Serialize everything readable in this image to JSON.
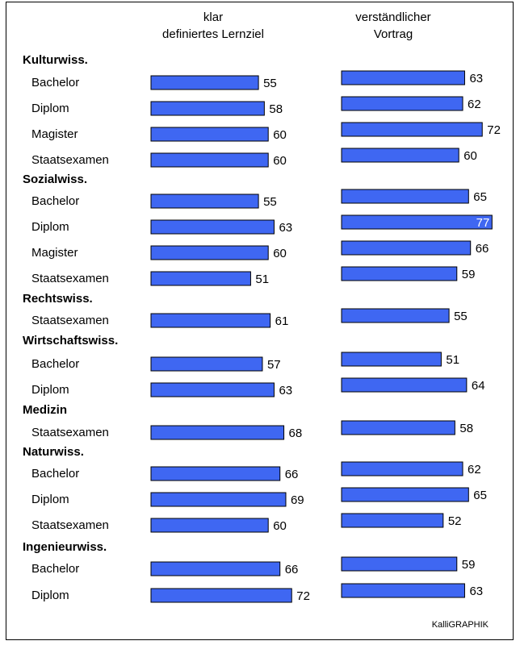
{
  "chart_data": {
    "type": "bar",
    "orientation": "horizontal",
    "bar_color": "#3f67f2",
    "series": [
      {
        "name": "klar definiertes Lernziel"
      },
      {
        "name": "verständlicher Vortrag"
      }
    ],
    "groups": [
      {
        "name": "Kulturwiss.",
        "rows": [
          {
            "label": "Bachelor",
            "values": [
              55,
              63
            ]
          },
          {
            "label": "Diplom",
            "values": [
              58,
              62
            ]
          },
          {
            "label": "Magister",
            "values": [
              60,
              72
            ]
          },
          {
            "label": "Staatsexamen",
            "values": [
              60,
              60
            ]
          }
        ]
      },
      {
        "name": "Sozialwiss.",
        "rows": [
          {
            "label": "Bachelor",
            "values": [
              55,
              65
            ]
          },
          {
            "label": "Diplom",
            "values": [
              63,
              77
            ]
          },
          {
            "label": "Magister",
            "values": [
              60,
              66
            ]
          },
          {
            "label": "Staatsexamen",
            "values": [
              51,
              59
            ]
          }
        ]
      },
      {
        "name": "Rechtswiss.",
        "rows": [
          {
            "label": "Staatsexamen",
            "values": [
              61,
              55
            ]
          }
        ]
      },
      {
        "name": "Wirtschaftswiss.",
        "rows": [
          {
            "label": "Bachelor",
            "values": [
              57,
              51
            ]
          },
          {
            "label": "Diplom",
            "values": [
              63,
              64
            ]
          }
        ]
      },
      {
        "name": "Medizin",
        "rows": [
          {
            "label": "Staatsexamen",
            "values": [
              68,
              58
            ]
          }
        ]
      },
      {
        "name": "Naturwiss.",
        "rows": [
          {
            "label": "Bachelor",
            "values": [
              66,
              62
            ]
          },
          {
            "label": "Diplom",
            "values": [
              69,
              65
            ]
          },
          {
            "label": "Staatsexamen",
            "values": [
              60,
              52
            ]
          }
        ]
      },
      {
        "name": "Ingenieurwiss.",
        "rows": [
          {
            "label": "Bachelor",
            "values": [
              66,
              59
            ]
          },
          {
            "label": "Diplom",
            "values": [
              72,
              63
            ]
          }
        ]
      }
    ],
    "credit": "KalliGRAPHIK"
  }
}
